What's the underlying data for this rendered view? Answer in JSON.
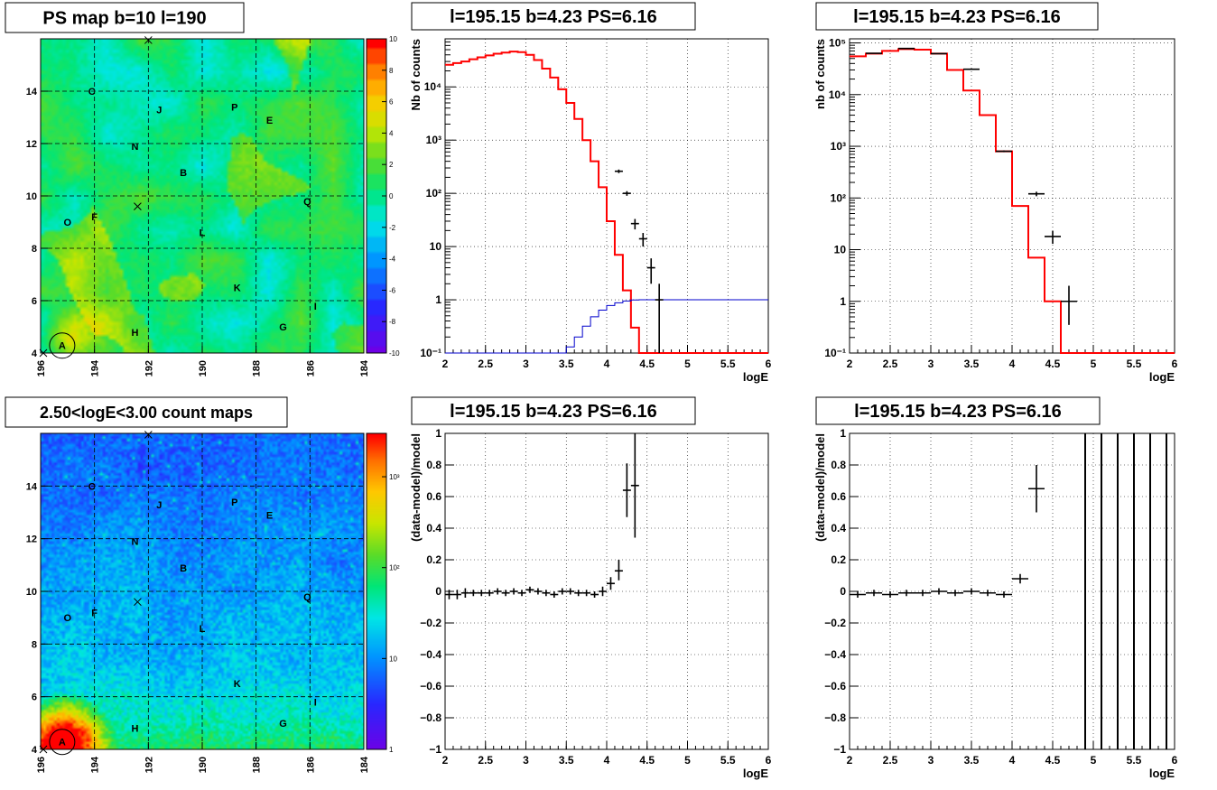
{
  "colors": {
    "model": "#ff0000",
    "data": "#000000",
    "blue_curve": "#0000cc"
  },
  "chart_data": [
    {
      "id": "ps_map",
      "type": "heatmap",
      "title": "PS map b=10 l=190",
      "x_ticks": [
        "196",
        "194",
        "192",
        "190",
        "188",
        "186",
        "184"
      ],
      "y_ticks": [
        "4",
        "6",
        "8",
        "10",
        "12",
        "14"
      ],
      "xlim": [
        196,
        184
      ],
      "ylim": [
        4,
        16
      ],
      "color_scale_ticks": [
        "10",
        "8",
        "6",
        "4",
        "2",
        "0",
        "-2",
        "-4",
        "-6",
        "-8",
        "-10"
      ],
      "zlim": [
        -10,
        10
      ],
      "grid": true,
      "sources": [
        {
          "label": "C",
          "l": 194.1,
          "b": 14.0
        },
        {
          "label": "J",
          "l": 191.6,
          "b": 13.3
        },
        {
          "label": "P",
          "l": 188.8,
          "b": 13.4
        },
        {
          "label": "E",
          "l": 187.5,
          "b": 12.9
        },
        {
          "label": "N",
          "l": 192.5,
          "b": 11.9
        },
        {
          "label": "B",
          "l": 190.7,
          "b": 10.9
        },
        {
          "label": "Q",
          "l": 186.1,
          "b": 9.8
        },
        {
          "label": "O",
          "l": 195.0,
          "b": 9.0
        },
        {
          "label": "F",
          "l": 194.0,
          "b": 9.2
        },
        {
          "label": "L",
          "l": 190.0,
          "b": 8.6
        },
        {
          "label": "K",
          "l": 188.7,
          "b": 6.5
        },
        {
          "label": "I",
          "l": 185.8,
          "b": 5.8
        },
        {
          "label": "G",
          "l": 187.0,
          "b": 5.0
        },
        {
          "label": "H",
          "l": 192.5,
          "b": 4.8
        },
        {
          "label": "A",
          "l": 195.2,
          "b": 4.3
        }
      ]
    },
    {
      "id": "count_map",
      "type": "heatmap",
      "title": "2.50<logE<3.00 count maps",
      "x_ticks": [
        "196",
        "194",
        "192",
        "190",
        "188",
        "186",
        "184"
      ],
      "y_ticks": [
        "4",
        "6",
        "8",
        "10",
        "12",
        "14"
      ],
      "xlim": [
        196,
        184
      ],
      "ylim": [
        4,
        16
      ],
      "color_scale_ticks": [
        "10³",
        "10²",
        "10",
        "1"
      ],
      "zlim": [
        1,
        3000
      ],
      "log_scale": true,
      "grid": true,
      "sources": [
        {
          "label": "C",
          "l": 194.1,
          "b": 14.0
        },
        {
          "label": "J",
          "l": 191.6,
          "b": 13.3
        },
        {
          "label": "P",
          "l": 188.8,
          "b": 13.4
        },
        {
          "label": "E",
          "l": 187.5,
          "b": 12.9
        },
        {
          "label": "N",
          "l": 192.5,
          "b": 11.9
        },
        {
          "label": "B",
          "l": 190.7,
          "b": 10.9
        },
        {
          "label": "Q",
          "l": 186.1,
          "b": 9.8
        },
        {
          "label": "O",
          "l": 195.0,
          "b": 9.0
        },
        {
          "label": "F",
          "l": 194.0,
          "b": 9.2
        },
        {
          "label": "L",
          "l": 190.0,
          "b": 8.6
        },
        {
          "label": "K",
          "l": 188.7,
          "b": 6.5
        },
        {
          "label": "I",
          "l": 185.8,
          "b": 5.8
        },
        {
          "label": "G",
          "l": 187.0,
          "b": 5.0
        },
        {
          "label": "H",
          "l": 192.5,
          "b": 4.8
        },
        {
          "label": "A",
          "l": 195.2,
          "b": 4.3
        }
      ]
    },
    {
      "id": "spectrum1",
      "type": "line",
      "title": "l=195.15 b=4.23 PS=6.16",
      "xlabel": "logE",
      "ylabel": "Nb of counts",
      "xlim": [
        2,
        6
      ],
      "ylim": [
        0.1,
        80000
      ],
      "log_y": true,
      "grid": true,
      "x_ticks": [
        "2",
        "2.5",
        "3",
        "3.5",
        "4",
        "4.5",
        "5",
        "5.5",
        "6"
      ],
      "y_ticks": [
        {
          "v": 10000,
          "t": "10⁴"
        },
        {
          "v": 1000,
          "t": "10³"
        },
        {
          "v": 100,
          "t": "10²"
        },
        {
          "v": 10,
          "t": "10"
        },
        {
          "v": 1,
          "t": "1"
        },
        {
          "v": 0.1,
          "t": "10⁻¹"
        }
      ],
      "series": [
        {
          "role": "model",
          "bin_edges": [
            2.0,
            2.1,
            2.2,
            2.3,
            2.4,
            2.5,
            2.6,
            2.7,
            2.8,
            2.9,
            3.0,
            3.1,
            3.2,
            3.3,
            3.4,
            3.5,
            3.6,
            3.7,
            3.8,
            3.9,
            4.0,
            4.1,
            4.2,
            4.3,
            4.4,
            4.5,
            4.6,
            4.7,
            4.8,
            4.9,
            5.0,
            5.1,
            5.2,
            5.3,
            5.4,
            5.5,
            5.6,
            5.7,
            5.8,
            5.9,
            6.0
          ],
          "values": [
            26000,
            28000,
            30000,
            33000,
            36000,
            39000,
            42000,
            44000,
            46000,
            45000,
            40000,
            32000,
            22000,
            15000,
            9000,
            5000,
            2500,
            1000,
            400,
            130,
            30,
            7,
            1.5,
            0.3,
            0.1,
            0.1,
            0.1,
            0.1,
            0.1,
            0.1,
            0.1,
            0.1,
            0.1,
            0.1,
            0.1,
            0.1,
            0.1,
            0.1,
            0.1,
            0.1
          ]
        },
        {
          "role": "blue",
          "bin_edges": [
            2.0,
            2.1,
            2.2,
            2.3,
            2.4,
            2.5,
            2.6,
            2.7,
            2.8,
            2.9,
            3.0,
            3.1,
            3.2,
            3.3,
            3.4,
            3.5,
            3.6,
            3.7,
            3.8,
            3.9,
            4.0,
            4.1,
            4.2,
            4.3,
            4.4,
            4.5,
            4.6,
            4.7,
            4.8,
            4.9,
            5.0,
            5.1,
            5.2,
            5.3,
            5.4,
            5.5,
            5.6,
            5.7,
            5.8,
            5.9,
            6.0
          ],
          "values": [
            0.1,
            0.1,
            0.1,
            0.1,
            0.1,
            0.1,
            0.1,
            0.1,
            0.1,
            0.1,
            0.1,
            0.1,
            0.1,
            0.1,
            0.1,
            0.13,
            0.2,
            0.32,
            0.48,
            0.64,
            0.78,
            0.88,
            0.95,
            0.99,
            1.0,
            1.0,
            1.0,
            1.0,
            1.0,
            1.0,
            1.0,
            1.0,
            1.0,
            1.0,
            1.0,
            1.0,
            1.0,
            1.0,
            1.0,
            1.0
          ]
        },
        {
          "role": "data",
          "points": [
            {
              "x": 4.15,
              "y": 260,
              "xerr": 0.05,
              "ylo": 240,
              "yhi": 280
            },
            {
              "x": 4.25,
              "y": 100,
              "xerr": 0.05,
              "ylo": 90,
              "yhi": 110
            },
            {
              "x": 4.35,
              "y": 27,
              "xerr": 0.05,
              "ylo": 21,
              "yhi": 33
            },
            {
              "x": 4.45,
              "y": 14,
              "xerr": 0.05,
              "ylo": 10,
              "yhi": 18
            },
            {
              "x": 4.55,
              "y": 4,
              "xerr": 0.05,
              "ylo": 2,
              "yhi": 6
            },
            {
              "x": 4.65,
              "y": 1,
              "xerr": 0.05,
              "ylo": 0.1,
              "yhi": 2
            }
          ]
        }
      ]
    },
    {
      "id": "spectrum2",
      "type": "line",
      "title": "l=195.15 b=4.23 PS=6.16",
      "xlabel": "logE",
      "ylabel": "nb of counts",
      "xlim": [
        2,
        6
      ],
      "ylim": [
        0.1,
        120000
      ],
      "log_y": true,
      "grid": true,
      "x_ticks": [
        "2",
        "2.5",
        "3",
        "3.5",
        "4",
        "4.5",
        "5",
        "5.5",
        "6"
      ],
      "y_ticks": [
        {
          "v": 100000,
          "t": "10⁵"
        },
        {
          "v": 10000,
          "t": "10⁴"
        },
        {
          "v": 1000,
          "t": "10³"
        },
        {
          "v": 100,
          "t": "10²"
        },
        {
          "v": 10,
          "t": "10"
        },
        {
          "v": 1,
          "t": "1"
        },
        {
          "v": 0.1,
          "t": "10⁻¹"
        }
      ],
      "series": [
        {
          "role": "model",
          "bin_edges": [
            2.0,
            2.2,
            2.4,
            2.6,
            2.8,
            3.0,
            3.2,
            3.4,
            3.6,
            3.8,
            4.0,
            4.2,
            4.4,
            4.6,
            4.8,
            5.0,
            5.2,
            5.4,
            5.6,
            5.8,
            6.0
          ],
          "values": [
            55000,
            62000,
            70000,
            76000,
            74000,
            62000,
            30000,
            12000,
            4000,
            800,
            70,
            7,
            1,
            0.1,
            0.1,
            0.1,
            0.1,
            0.1,
            0.1,
            0.1
          ]
        },
        {
          "role": "data",
          "points": [
            {
              "x": 2.3,
              "y": 63000,
              "xerr": 0.1,
              "ylo": 62000,
              "yhi": 64000
            },
            {
              "x": 2.7,
              "y": 78000,
              "xerr": 0.1,
              "ylo": 77000,
              "yhi": 79000
            },
            {
              "x": 3.1,
              "y": 62000,
              "xerr": 0.1,
              "ylo": 61000,
              "yhi": 63000
            },
            {
              "x": 3.5,
              "y": 31000,
              "xerr": 0.1,
              "ylo": 30000,
              "yhi": 32000
            },
            {
              "x": 3.9,
              "y": 800,
              "xerr": 0.1,
              "ylo": 770,
              "yhi": 830
            },
            {
              "x": 4.3,
              "y": 120,
              "xerr": 0.1,
              "ylo": 108,
              "yhi": 132
            },
            {
              "x": 4.5,
              "y": 18,
              "xerr": 0.1,
              "ylo": 13,
              "yhi": 23
            },
            {
              "x": 4.7,
              "y": 1,
              "xerr": 0.1,
              "ylo": 0.35,
              "yhi": 2
            }
          ]
        }
      ]
    },
    {
      "id": "residual1",
      "type": "scatter",
      "title": "l=195.15 b=4.23 PS=6.16",
      "xlabel": "logE",
      "ylabel": "(data-model)/model",
      "xlim": [
        2,
        6
      ],
      "ylim": [
        -1,
        1
      ],
      "grid": true,
      "x_ticks": [
        "2",
        "2.5",
        "3",
        "3.5",
        "4",
        "4.5",
        "5",
        "5.5",
        "6"
      ],
      "y_ticks": [
        "1",
        "0.8",
        "0.6",
        "0.4",
        "0.2",
        "0",
        "−0.2",
        "−0.4",
        "−0.6",
        "−0.8",
        "−1"
      ],
      "series": [
        {
          "role": "data",
          "points": [
            {
              "x": 2.05,
              "y": -0.02,
              "xerr": 0.05,
              "ylo": -0.05,
              "yhi": 0.01
            },
            {
              "x": 2.15,
              "y": -0.02,
              "xerr": 0.05,
              "ylo": -0.05,
              "yhi": 0.01
            },
            {
              "x": 2.25,
              "y": -0.01,
              "xerr": 0.05,
              "ylo": -0.04,
              "yhi": 0.02
            },
            {
              "x": 2.35,
              "y": -0.01,
              "xerr": 0.05,
              "ylo": -0.03,
              "yhi": 0.01
            },
            {
              "x": 2.45,
              "y": -0.01,
              "xerr": 0.05,
              "ylo": -0.03,
              "yhi": 0.01
            },
            {
              "x": 2.55,
              "y": -0.01,
              "xerr": 0.05,
              "ylo": -0.03,
              "yhi": 0.01
            },
            {
              "x": 2.65,
              "y": 0.0,
              "xerr": 0.05,
              "ylo": -0.02,
              "yhi": 0.02
            },
            {
              "x": 2.75,
              "y": -0.01,
              "xerr": 0.05,
              "ylo": -0.03,
              "yhi": 0.01
            },
            {
              "x": 2.85,
              "y": 0.0,
              "xerr": 0.05,
              "ylo": -0.02,
              "yhi": 0.02
            },
            {
              "x": 2.95,
              "y": -0.01,
              "xerr": 0.05,
              "ylo": -0.03,
              "yhi": 0.01
            },
            {
              "x": 3.05,
              "y": 0.01,
              "xerr": 0.05,
              "ylo": -0.01,
              "yhi": 0.03
            },
            {
              "x": 3.15,
              "y": 0.0,
              "xerr": 0.05,
              "ylo": -0.02,
              "yhi": 0.02
            },
            {
              "x": 3.25,
              "y": -0.01,
              "xerr": 0.05,
              "ylo": -0.03,
              "yhi": 0.01
            },
            {
              "x": 3.35,
              "y": -0.02,
              "xerr": 0.05,
              "ylo": -0.04,
              "yhi": 0.0
            },
            {
              "x": 3.45,
              "y": 0.0,
              "xerr": 0.05,
              "ylo": -0.02,
              "yhi": 0.02
            },
            {
              "x": 3.55,
              "y": 0.0,
              "xerr": 0.05,
              "ylo": -0.02,
              "yhi": 0.02
            },
            {
              "x": 3.65,
              "y": -0.01,
              "xerr": 0.05,
              "ylo": -0.03,
              "yhi": 0.01
            },
            {
              "x": 3.75,
              "y": -0.01,
              "xerr": 0.05,
              "ylo": -0.03,
              "yhi": 0.01
            },
            {
              "x": 3.85,
              "y": -0.02,
              "xerr": 0.05,
              "ylo": -0.04,
              "yhi": 0.0
            },
            {
              "x": 3.95,
              "y": 0.0,
              "xerr": 0.05,
              "ylo": -0.03,
              "yhi": 0.03
            },
            {
              "x": 4.05,
              "y": 0.05,
              "xerr": 0.05,
              "ylo": 0.01,
              "yhi": 0.09
            },
            {
              "x": 4.15,
              "y": 0.13,
              "xerr": 0.05,
              "ylo": 0.07,
              "yhi": 0.2
            },
            {
              "x": 4.25,
              "y": 0.64,
              "xerr": 0.05,
              "ylo": 0.47,
              "yhi": 0.81
            },
            {
              "x": 4.35,
              "y": 0.67,
              "xerr": 0.05,
              "ylo": 0.34,
              "yhi": 1.0
            }
          ]
        }
      ]
    },
    {
      "id": "residual2",
      "type": "scatter",
      "title": "l=195.15 b=4.23 PS=6.16",
      "xlabel": "logE",
      "ylabel": "(data-model)/model",
      "xlim": [
        2,
        6
      ],
      "ylim": [
        -1,
        1
      ],
      "grid": true,
      "x_ticks": [
        "2",
        "2.5",
        "3",
        "3.5",
        "4",
        "4.5",
        "5",
        "5.5",
        "6"
      ],
      "y_ticks": [
        "1",
        "0.8",
        "0.6",
        "0.4",
        "0.2",
        "0",
        "−0.2",
        "−0.4",
        "−0.6",
        "−0.8",
        "−1"
      ],
      "vertical_lines_x": [
        4.9,
        5.1,
        5.3,
        5.5,
        5.7,
        5.9
      ],
      "series": [
        {
          "role": "data",
          "points": [
            {
              "x": 2.1,
              "y": -0.02,
              "xerr": 0.1,
              "ylo": -0.04,
              "yhi": 0.0
            },
            {
              "x": 2.3,
              "y": -0.01,
              "xerr": 0.1,
              "ylo": -0.03,
              "yhi": 0.01
            },
            {
              "x": 2.5,
              "y": -0.02,
              "xerr": 0.1,
              "ylo": -0.04,
              "yhi": 0.0
            },
            {
              "x": 2.7,
              "y": -0.01,
              "xerr": 0.1,
              "ylo": -0.03,
              "yhi": 0.01
            },
            {
              "x": 2.9,
              "y": -0.01,
              "xerr": 0.1,
              "ylo": -0.03,
              "yhi": 0.01
            },
            {
              "x": 3.1,
              "y": 0.0,
              "xerr": 0.1,
              "ylo": -0.02,
              "yhi": 0.02
            },
            {
              "x": 3.3,
              "y": -0.01,
              "xerr": 0.1,
              "ylo": -0.03,
              "yhi": 0.01
            },
            {
              "x": 3.5,
              "y": 0.0,
              "xerr": 0.1,
              "ylo": -0.02,
              "yhi": 0.02
            },
            {
              "x": 3.7,
              "y": -0.01,
              "xerr": 0.1,
              "ylo": -0.03,
              "yhi": 0.01
            },
            {
              "x": 3.9,
              "y": -0.02,
              "xerr": 0.1,
              "ylo": -0.04,
              "yhi": 0.0
            },
            {
              "x": 4.1,
              "y": 0.08,
              "xerr": 0.1,
              "ylo": 0.05,
              "yhi": 0.11
            },
            {
              "x": 4.3,
              "y": 0.65,
              "xerr": 0.1,
              "ylo": 0.5,
              "yhi": 0.8
            }
          ]
        }
      ]
    }
  ]
}
